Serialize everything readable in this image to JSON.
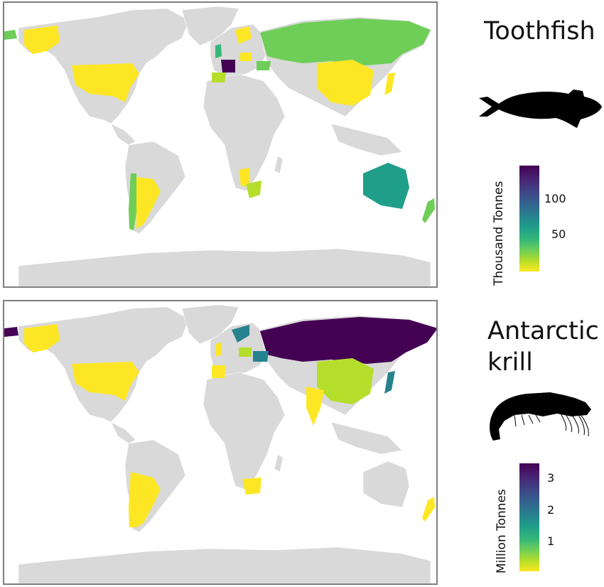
{
  "panels": [
    {
      "title": "Toothfish",
      "legend_title": "Thousand Tonnes",
      "legend_ticks": [
        {
          "label": "100",
          "value": 100
        },
        {
          "label": "50",
          "value": 50
        }
      ],
      "scale_range": [
        0,
        145
      ],
      "silhouette": "toothfish-silhouette",
      "highlighted_countries": [
        {
          "name": "France",
          "level": 1.0
        },
        {
          "name": "Australia",
          "level": 0.55
        },
        {
          "name": "Russia",
          "level": 0.35
        },
        {
          "name": "Chile",
          "level": 0.3
        },
        {
          "name": "South Africa",
          "level": 0.22
        },
        {
          "name": "New Zealand",
          "level": 0.25
        },
        {
          "name": "United Kingdom",
          "level": 0.3
        },
        {
          "name": "United States",
          "level": 0.02
        },
        {
          "name": "China",
          "level": 0.02
        },
        {
          "name": "Argentina",
          "level": 0.05
        },
        {
          "name": "Japan",
          "level": 0.03
        },
        {
          "name": "Spain",
          "level": 0.1
        },
        {
          "name": "Namibia",
          "level": 0.03
        }
      ]
    },
    {
      "title": "Antarctic krill",
      "title_lines": [
        "Antarctic",
        "krill"
      ],
      "legend_title": "Million Tonnes",
      "legend_ticks": [
        {
          "label": "3",
          "value": 3
        },
        {
          "label": "2",
          "value": 2
        },
        {
          "label": "1",
          "value": 1
        }
      ],
      "scale_range": [
        0,
        3.35
      ],
      "silhouette": "krill-silhouette",
      "highlighted_countries": [
        {
          "name": "Russia",
          "level": 1.0
        },
        {
          "name": "Norway",
          "level": 0.55
        },
        {
          "name": "Ukraine",
          "level": 0.5
        },
        {
          "name": "Japan",
          "level": 0.5
        },
        {
          "name": "China",
          "level": 0.12
        },
        {
          "name": "Poland",
          "level": 0.2
        },
        {
          "name": "India",
          "level": 0.03
        },
        {
          "name": "United States",
          "level": 0.02
        },
        {
          "name": "Argentina",
          "level": 0.03
        },
        {
          "name": "South Africa",
          "level": 0.03
        },
        {
          "name": "Spain",
          "level": 0.05
        },
        {
          "name": "New Zealand",
          "level": 0.03
        }
      ]
    }
  ],
  "colors": {
    "land": "#d9d9d9",
    "ocean": "#ffffff",
    "border": "#7f7f7f",
    "viridis": [
      "#fde725",
      "#b5de2b",
      "#6ece58",
      "#35b779",
      "#1f9e89",
      "#26828e",
      "#31688e",
      "#3e4989",
      "#482878",
      "#440154"
    ]
  }
}
